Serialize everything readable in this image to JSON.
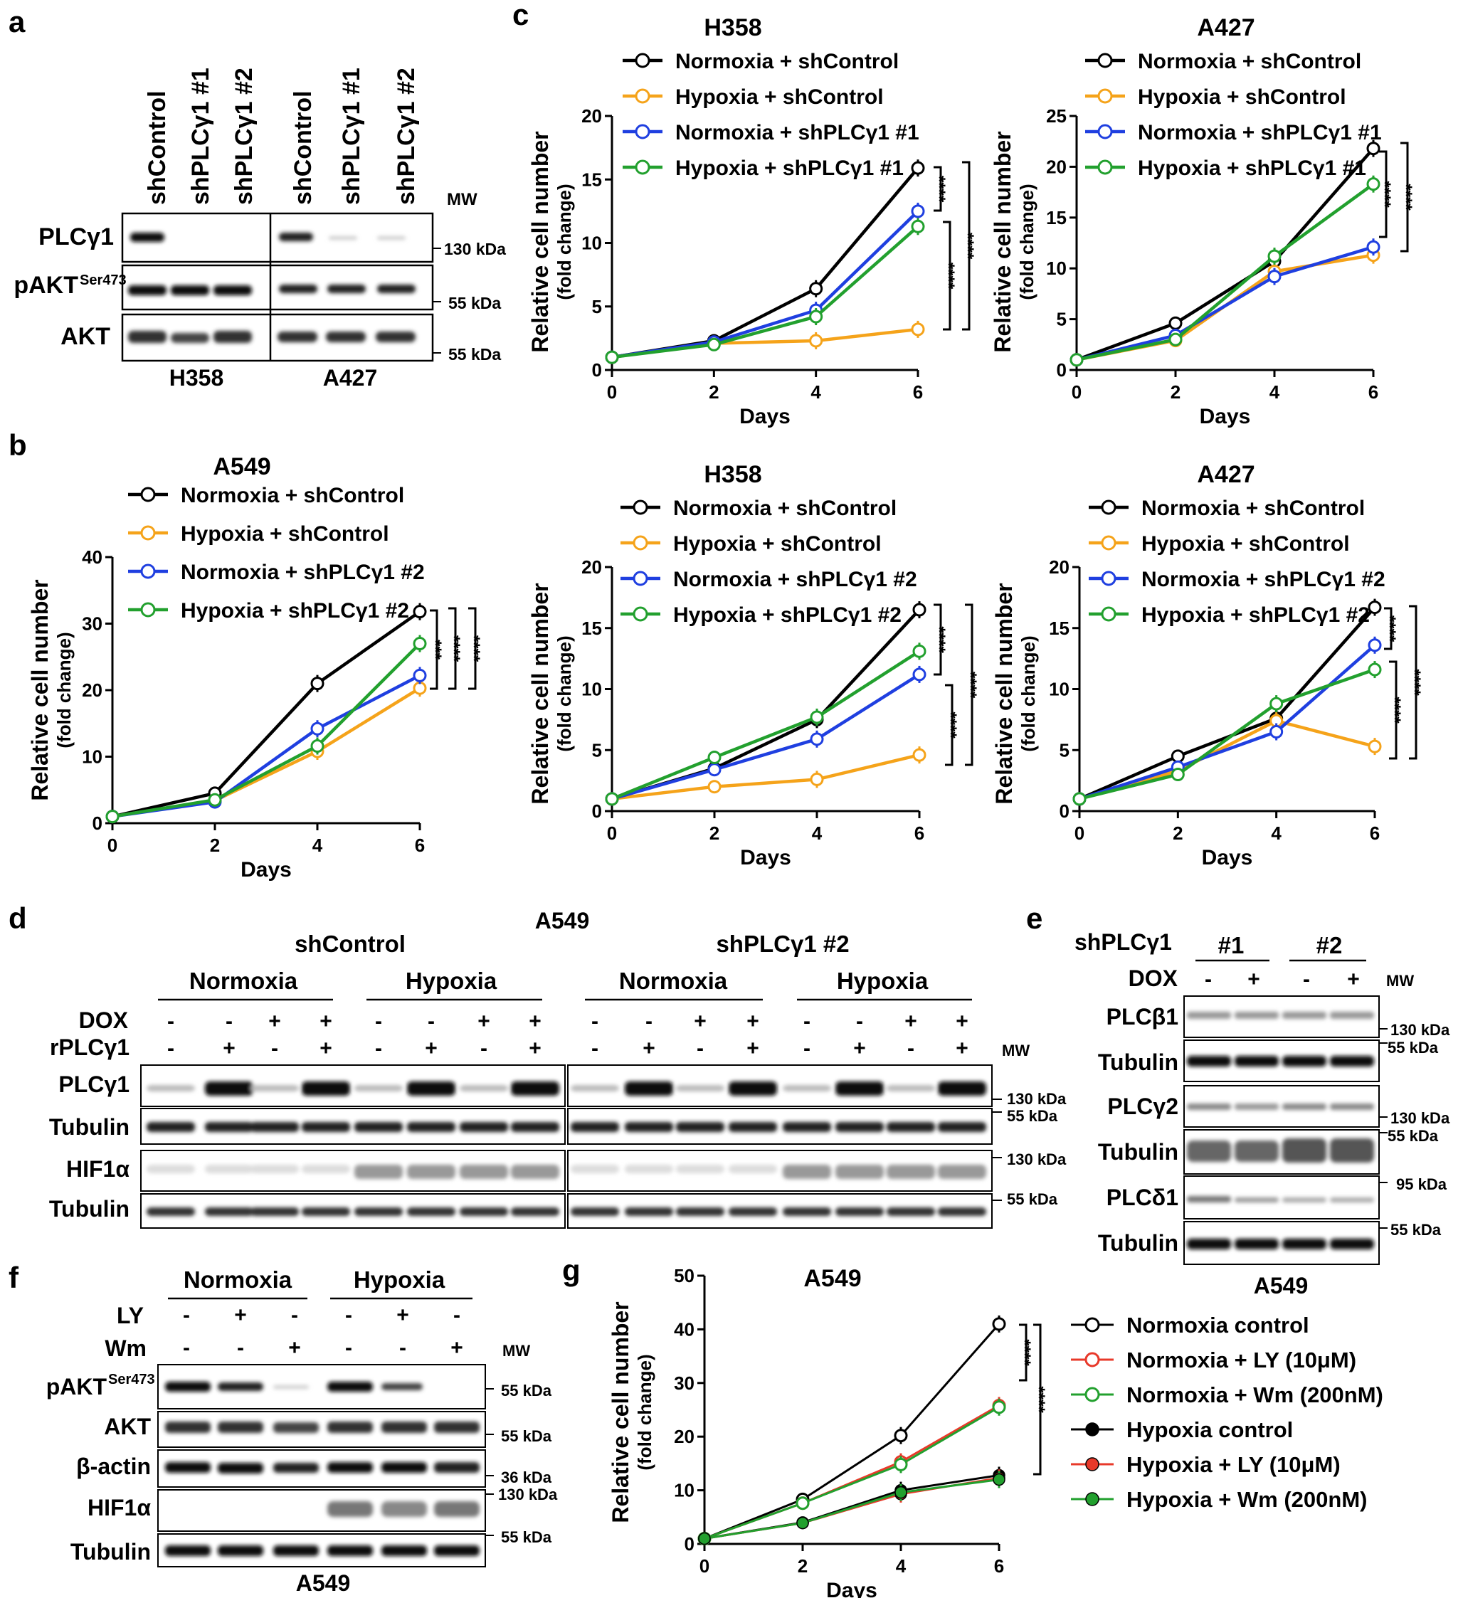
{
  "colors": {
    "black": "#000000",
    "orange": "#f5a31a",
    "blue": "#1f3fe0",
    "green": "#22a02e",
    "red": "#e8392a"
  },
  "panel_labels": {
    "a": "a",
    "b": "b",
    "c": "c",
    "d": "d",
    "e": "e",
    "f": "f",
    "g": "g"
  },
  "blot_a": {
    "lanes": [
      "shControl",
      "shPLCγ1 #1",
      "shPLCγ1 #2",
      "shControl",
      "shPLCγ1 #1",
      "shPLCγ1 #2"
    ],
    "rows": [
      "PLCγ1",
      "pAKT",
      "AKT"
    ],
    "sup": "Ser473",
    "mw_header": "MW",
    "mw": [
      "130 kDa",
      "55 kDa",
      "55 kDa"
    ],
    "cells": [
      "H358",
      "A427"
    ]
  },
  "blot_d": {
    "title": "A549",
    "groups": [
      "shControl",
      "shPLCγ1 #2"
    ],
    "conditions": [
      "Normoxia",
      "Hypoxia",
      "Normoxia",
      "Hypoxia"
    ],
    "treatments": [
      "DOX",
      "rPLCγ1"
    ],
    "dox_signs": [
      "-",
      "-",
      "+",
      "+",
      "-",
      "-",
      "+",
      "+",
      "-",
      "-",
      "+",
      "+",
      "-",
      "-",
      "+",
      "+"
    ],
    "rplc_signs": [
      "-",
      "+",
      "-",
      "+",
      "-",
      "+",
      "-",
      "+",
      "-",
      "+",
      "-",
      "+",
      "-",
      "+",
      "-",
      "+"
    ],
    "rows": [
      "PLCγ1",
      "Tubulin",
      "HIF1α",
      "Tubulin"
    ],
    "mw_header": "MW",
    "mw": [
      "130 kDa",
      "55 kDa",
      "130 kDa",
      "55 kDa"
    ]
  },
  "blot_e": {
    "header": "shPLCγ1",
    "groups": [
      "#1",
      "#2"
    ],
    "treatment": "DOX",
    "signs": [
      "-",
      "+",
      "-",
      "+"
    ],
    "mw_header": "MW",
    "rows": [
      "PLCβ1",
      "Tubulin",
      "PLCγ2",
      "Tubulin",
      "PLCδ1",
      "Tubulin"
    ],
    "mw": [
      "130 kDa",
      "55 kDa",
      "130 kDa",
      "55 kDa",
      "95 kDa",
      "55 kDa"
    ],
    "cell": "A549"
  },
  "blot_f": {
    "conditions": [
      "Normoxia",
      "Hypoxia"
    ],
    "treatments": [
      "LY",
      "Wm"
    ],
    "ly_signs": [
      "-",
      "+",
      "-",
      "-",
      "+",
      "-"
    ],
    "wm_signs": [
      "-",
      "-",
      "+",
      "-",
      "-",
      "+"
    ],
    "mw_header": "MW",
    "rows": [
      "pAKT",
      "AKT",
      "β-actin",
      "HIF1α",
      "Tubulin"
    ],
    "sup": "Ser473",
    "mw": [
      "55 kDa",
      "55 kDa",
      "36 kDa",
      "130 kDa",
      "55 kDa"
    ],
    "cell": "A549"
  },
  "chart_data": [
    {
      "id": "c_h358",
      "type": "line",
      "title": "H358",
      "xlabel": "Days",
      "ylabel": "Relative cell number",
      "ylabel2": "(fold change)",
      "x": [
        0,
        2,
        4,
        6
      ],
      "xlim": [
        0,
        6
      ],
      "ylim": [
        0,
        20
      ],
      "yticks": [
        0,
        5,
        10,
        15,
        20
      ],
      "series": [
        {
          "name": "Normoxia + shControl",
          "color": "black",
          "values": [
            1,
            2.3,
            6.4,
            15.9
          ]
        },
        {
          "name": "Hypoxia + shControl",
          "color": "orange",
          "values": [
            1,
            2.1,
            2.3,
            3.2
          ]
        },
        {
          "name": "Normoxia + shPLCγ1 #1",
          "color": "blue",
          "values": [
            1,
            2.2,
            4.7,
            12.5
          ]
        },
        {
          "name": "Hypoxia + shPLCγ1 #1",
          "color": "green",
          "values": [
            1,
            2.0,
            4.2,
            11.3
          ]
        }
      ],
      "annotations": [
        "****",
        "****",
        "****"
      ]
    },
    {
      "id": "c_a427",
      "type": "line",
      "title": "A427",
      "xlabel": "Days",
      "ylabel": "Relative cell number",
      "ylabel2": "(fold change)",
      "x": [
        0,
        2,
        4,
        6
      ],
      "xlim": [
        0,
        6
      ],
      "ylim": [
        0,
        25
      ],
      "yticks": [
        0,
        5,
        10,
        15,
        20,
        25
      ],
      "series": [
        {
          "name": "Normoxia + shControl",
          "color": "black",
          "values": [
            1,
            4.6,
            10.7,
            21.8
          ]
        },
        {
          "name": "Hypoxia + shControl",
          "color": "orange",
          "values": [
            1,
            2.9,
            9.7,
            11.3
          ]
        },
        {
          "name": "Normoxia + shPLCγ1 #1",
          "color": "blue",
          "values": [
            1,
            3.4,
            9.2,
            12.1
          ]
        },
        {
          "name": "Hypoxia + shPLCγ1 #1",
          "color": "green",
          "values": [
            1,
            3.0,
            11.2,
            18.3
          ]
        }
      ],
      "annotations": [
        "****",
        "****"
      ]
    },
    {
      "id": "b_a549",
      "type": "line",
      "title": "A549",
      "xlabel": "Days",
      "ylabel": "Relative cell number",
      "ylabel2": "(fold change)",
      "x": [
        0,
        2,
        4,
        6
      ],
      "xlim": [
        0,
        6
      ],
      "ylim": [
        0,
        40
      ],
      "yticks": [
        0,
        10,
        20,
        30,
        40
      ],
      "series": [
        {
          "name": "Normoxia + shControl",
          "color": "black",
          "values": [
            1,
            4.5,
            21,
            31.8
          ]
        },
        {
          "name": "Hypoxia + shControl",
          "color": "orange",
          "values": [
            1,
            3.4,
            10.8,
            20.3
          ]
        },
        {
          "name": "Normoxia + shPLCγ1 #2",
          "color": "blue",
          "values": [
            1,
            3.2,
            14.2,
            22.2
          ]
        },
        {
          "name": "Hypoxia + shPLCγ1 #2",
          "color": "green",
          "values": [
            1,
            3.5,
            11.6,
            27
          ]
        }
      ],
      "annotations": [
        "***",
        "****",
        "****"
      ]
    },
    {
      "id": "b_h358",
      "type": "line",
      "title": "H358",
      "xlabel": "Days",
      "ylabel": "Relative cell number",
      "ylabel2": "(fold change)",
      "x": [
        0,
        2,
        4,
        6
      ],
      "xlim": [
        0,
        6
      ],
      "ylim": [
        0,
        20
      ],
      "yticks": [
        0,
        5,
        10,
        15,
        20
      ],
      "series": [
        {
          "name": "Normoxia + shControl",
          "color": "black",
          "values": [
            1,
            3.5,
            7.5,
            16.5
          ]
        },
        {
          "name": "Hypoxia + shControl",
          "color": "orange",
          "values": [
            1,
            2.0,
            2.6,
            4.6
          ]
        },
        {
          "name": "Normoxia + shPLCγ1 #2",
          "color": "blue",
          "values": [
            1,
            3.4,
            5.9,
            11.2
          ]
        },
        {
          "name": "Hypoxia + shPLCγ1 #2",
          "color": "green",
          "values": [
            1,
            4.4,
            7.7,
            13.1
          ]
        }
      ],
      "annotations": [
        "****",
        "****",
        "****"
      ]
    },
    {
      "id": "b_a427",
      "type": "line",
      "title": "A427",
      "xlabel": "Days",
      "ylabel": "Relative cell number",
      "ylabel2": "(fold change)",
      "x": [
        0,
        2,
        4,
        6
      ],
      "xlim": [
        0,
        6
      ],
      "ylim": [
        0,
        20
      ],
      "yticks": [
        0,
        5,
        10,
        15,
        20
      ],
      "series": [
        {
          "name": "Normoxia + shControl",
          "color": "black",
          "values": [
            1,
            4.5,
            7.6,
            16.7
          ]
        },
        {
          "name": "Hypoxia + shControl",
          "color": "orange",
          "values": [
            1,
            3.3,
            7.4,
            5.3
          ]
        },
        {
          "name": "Normoxia + shPLCγ1 #2",
          "color": "blue",
          "values": [
            1,
            3.6,
            6.5,
            13.6
          ]
        },
        {
          "name": "Hypoxia + shPLCγ1 #2",
          "color": "green",
          "values": [
            1,
            3.0,
            8.8,
            11.6
          ]
        }
      ],
      "annotations": [
        "****",
        "****",
        "****"
      ]
    },
    {
      "id": "g_a549",
      "type": "line",
      "title": "A549",
      "xlabel": "Days",
      "ylabel": "Relative cell number",
      "ylabel2": "(fold change)",
      "x": [
        0,
        2,
        4,
        6
      ],
      "xlim": [
        0,
        6
      ],
      "ylim": [
        0,
        50
      ],
      "yticks": [
        0,
        10,
        20,
        30,
        40,
        50
      ],
      "series": [
        {
          "name": "Normoxia control",
          "color": "black",
          "filled": false,
          "values": [
            1,
            8.3,
            20.2,
            41
          ]
        },
        {
          "name": "Normoxia + LY (10μM)",
          "color": "red",
          "filled": false,
          "values": [
            1,
            7.6,
            15.3,
            25.8
          ]
        },
        {
          "name": "Normoxia + Wm (200nM)",
          "color": "green",
          "filled": false,
          "values": [
            1,
            7.6,
            14.8,
            25.5
          ]
        },
        {
          "name": "Hypoxia control",
          "color": "black",
          "filled": true,
          "values": [
            1,
            4.0,
            10.0,
            12.8
          ]
        },
        {
          "name": "Hypoxia + LY (10μM)",
          "color": "red",
          "filled": true,
          "values": [
            1,
            3.9,
            9.3,
            12.3
          ]
        },
        {
          "name": "Hypoxia + Wm (200nM)",
          "color": "green",
          "filled": true,
          "values": [
            1,
            3.9,
            9.6,
            12.0
          ]
        }
      ],
      "annotations": [
        "****",
        "****"
      ]
    }
  ]
}
